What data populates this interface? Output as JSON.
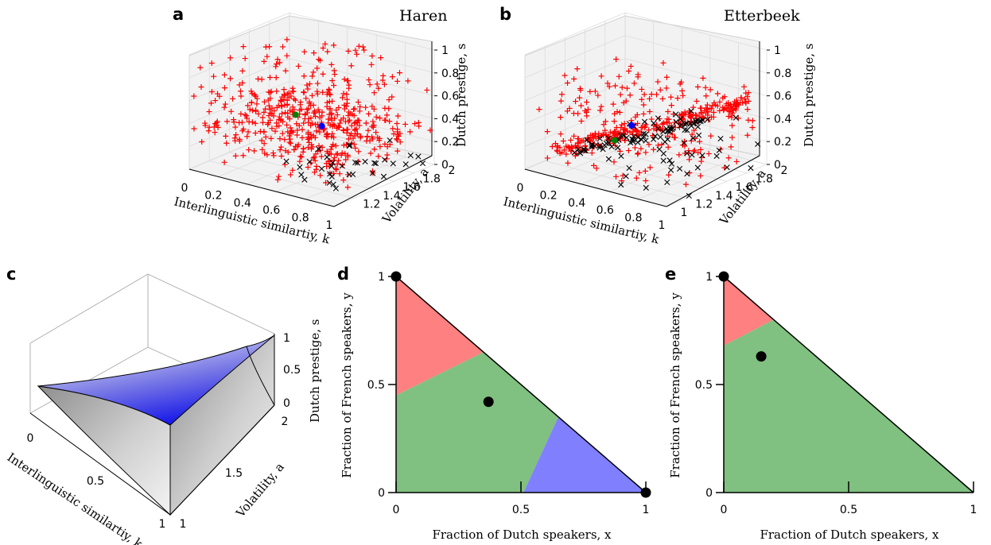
{
  "panels": {
    "a": {
      "letter": "a",
      "title": "Haren"
    },
    "b": {
      "letter": "b",
      "title": "Etterbeek"
    },
    "c": {
      "letter": "c"
    },
    "d": {
      "letter": "d"
    },
    "e": {
      "letter": "e"
    }
  },
  "chart_data": [
    {
      "panel": "a",
      "type": "scatter",
      "title": "Haren",
      "xlabel": "Interlinguistic similartiy, k",
      "ylabel": "Volatility, a",
      "zlabel": "Dutch prestige, s",
      "x_ticks": [
        "0",
        "0.2",
        "0.4",
        "0.6",
        "0.8",
        "1"
      ],
      "y_ticks": [
        "1.2",
        "1.4",
        "1.6",
        "1.8",
        "2"
      ],
      "z_ticks": [
        "0",
        "0.2",
        "0.4",
        "0.6",
        "0.8",
        "1"
      ],
      "xlim": [
        0,
        1
      ],
      "ylim": [
        1,
        2
      ],
      "zlim": [
        0,
        1
      ],
      "series": [
        {
          "marker": "+",
          "color": "#ff0000",
          "count": 540
        },
        {
          "marker": "x",
          "color": "#000000",
          "count": 34
        },
        {
          "marker": "o",
          "color": "#0000ff",
          "points": [
            [
              0.5,
              1.6,
              0.32
            ]
          ]
        },
        {
          "marker": "o",
          "color": "#008000",
          "points": [
            [
              0.25,
              1.7,
              0.3
            ]
          ]
        }
      ]
    },
    {
      "panel": "b",
      "type": "scatter",
      "title": "Etterbeek",
      "xlabel": "Interlinguistic similartiy, k",
      "ylabel": "Volatility, a",
      "zlabel": "Dutch prestige, s",
      "x_ticks": [
        "0",
        "0.2",
        "0.4",
        "0.6",
        "0.8",
        "1"
      ],
      "y_ticks": [
        "1",
        "1.2",
        "1.4",
        "1.6",
        "1.8",
        "2"
      ],
      "z_ticks": [
        "0",
        "0.2",
        "0.4",
        "0.6",
        "0.8",
        "1"
      ],
      "xlim": [
        0,
        1
      ],
      "ylim": [
        1,
        2
      ],
      "zlim": [
        0,
        1
      ],
      "series": [
        {
          "marker": "+",
          "color": "#ff0000",
          "count": 430
        },
        {
          "marker": "x",
          "color": "#000000",
          "count": 110
        },
        {
          "marker": "o",
          "color": "#0000ff",
          "points": [
            [
              0.4,
              1.5,
              0.33
            ]
          ]
        },
        {
          "marker": "o",
          "color": "#008000",
          "points": [
            [
              0.35,
              1.4,
              0.22
            ]
          ]
        }
      ]
    },
    {
      "panel": "c",
      "type": "area",
      "xlabel": "Interlinguistic similartiy, k",
      "ylabel": "Volatility, a",
      "zlabel": "Dutch prestige, s",
      "x_ticks": [
        "0",
        "0.5",
        "1"
      ],
      "y_ticks": [
        "1",
        "1.5",
        "2"
      ],
      "z_ticks": [
        "0",
        "0.5",
        "1"
      ],
      "xlim": [
        0,
        1
      ],
      "ylim": [
        1,
        2
      ],
      "zlim": [
        0,
        1
      ],
      "surfaces": [
        {
          "color": "#0000ff",
          "name": ""
        },
        {
          "color": "#b4b4b4",
          "name": ""
        }
      ]
    },
    {
      "panel": "d",
      "type": "area",
      "xlabel": "Fraction of Dutch speakers, x",
      "ylabel": "Fraction of French speakers, y",
      "x_ticks": [
        "0",
        "0.5",
        "1"
      ],
      "y_ticks": [
        "0",
        "0.5",
        "1"
      ],
      "xlim": [
        0,
        1
      ],
      "ylim": [
        0,
        1
      ],
      "regions": [
        {
          "color": "#ff8080",
          "polygon": [
            [
              0,
              1
            ],
            [
              0,
              0.45
            ],
            [
              0.35,
              0.65
            ]
          ]
        },
        {
          "color": "#80c080",
          "polygon": [
            [
              0,
              0.45
            ],
            [
              0.35,
              0.65
            ],
            [
              0.65,
              0.35
            ],
            [
              0.51,
              0
            ],
            [
              0,
              0
            ]
          ]
        },
        {
          "color": "#8080ff",
          "polygon": [
            [
              0.65,
              0.35
            ],
            [
              1,
              0
            ],
            [
              0.51,
              0
            ]
          ]
        }
      ],
      "points": [
        [
          0,
          1
        ],
        [
          1,
          0
        ],
        [
          0.37,
          0.42
        ]
      ]
    },
    {
      "panel": "e",
      "type": "area",
      "xlabel": "Fraction of Dutch speakers, x",
      "ylabel": "Fraction of French speakers, y",
      "x_ticks": [
        "0",
        "0.5",
        "1"
      ],
      "y_ticks": [
        "0",
        "0.5",
        "1"
      ],
      "xlim": [
        0,
        1
      ],
      "ylim": [
        0,
        1
      ],
      "regions": [
        {
          "color": "#ff8080",
          "polygon": [
            [
              0,
              1
            ],
            [
              0,
              0.68
            ],
            [
              0.2,
              0.8
            ]
          ]
        },
        {
          "color": "#80c080",
          "polygon": [
            [
              0,
              0.68
            ],
            [
              0.2,
              0.8
            ],
            [
              1,
              0
            ],
            [
              0,
              0
            ]
          ]
        }
      ],
      "points": [
        [
          0,
          1
        ],
        [
          0.15,
          0.63
        ]
      ]
    }
  ]
}
